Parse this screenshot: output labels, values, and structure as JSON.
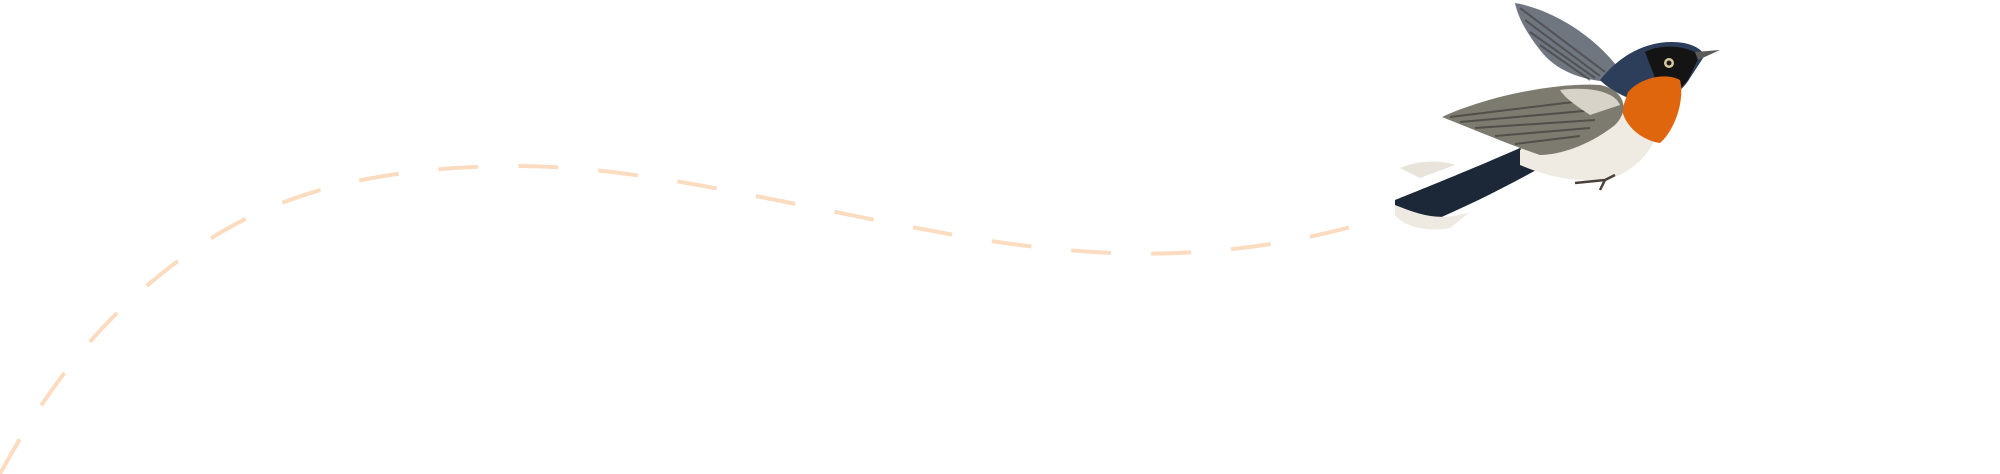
{
  "illustration": {
    "subject": "bird-in-flight",
    "flight_path_style": "dashed",
    "colors": {
      "background": "#ffffff",
      "flight_path": "#fcdcc0",
      "bird_throat": "#e0660e",
      "bird_head": "#2c3e5a",
      "bird_wing": "#7d7a70",
      "bird_belly": "#efebe3",
      "bird_tail": "#1c2838"
    }
  }
}
